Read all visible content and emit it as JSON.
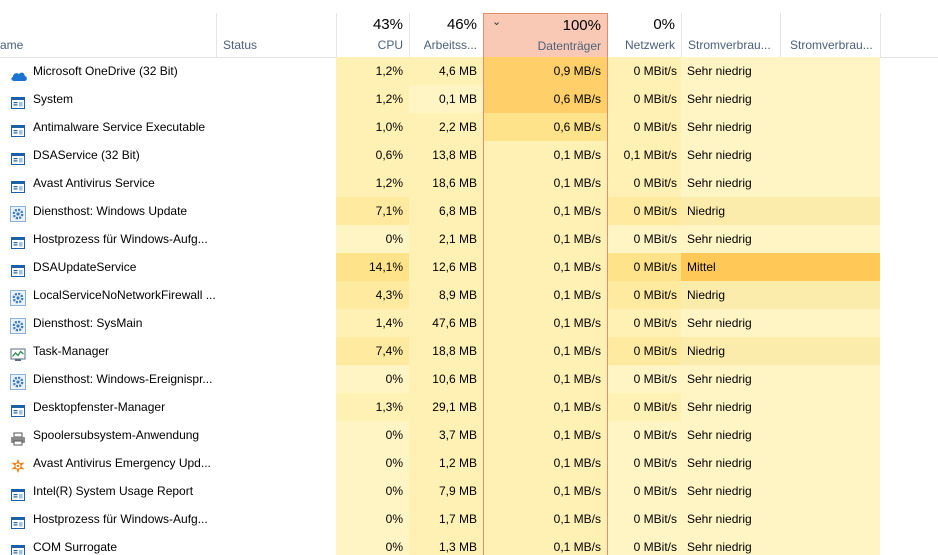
{
  "columns": {
    "name": "ame",
    "status": "Status",
    "cpu": {
      "pct": "43%",
      "label": "CPU"
    },
    "mem": {
      "pct": "46%",
      "label": "Arbeitss..."
    },
    "disk": {
      "pct": "100%",
      "label": "Datenträger"
    },
    "net": {
      "pct": "0%",
      "label": "Netzwerk"
    },
    "power": "Stromverbrau...",
    "power_trend": "Stromverbrau..."
  },
  "colors": {
    "heat_light": "#fff4c4",
    "heat_mid": "#ffe99b",
    "heat_strong": "#ffd273",
    "heat_orange": "#ffc857",
    "sorted_header": "#f9c9b6",
    "sorted_border": "#df8e70"
  },
  "processes": [
    {
      "name": "Microsoft OneDrive (32 Bit)",
      "icon": "onedrive-icon",
      "cpu": "1,2%",
      "mem": "4,6 MB",
      "disk": "0,9 MB/s",
      "net": "0 MBit/s",
      "power": "Sehr niedrig",
      "cpu_bg": "#fff0b4",
      "mem_bg": "#fff0b4",
      "disk_bg": "#ffd06a",
      "pow_bg": "#fff4c4"
    },
    {
      "name": "System",
      "icon": "window-app-icon",
      "cpu": "1,2%",
      "mem": "0,1 MB",
      "disk": "0,6 MB/s",
      "net": "0 MBit/s",
      "power": "Sehr niedrig",
      "cpu_bg": "#fff0b4",
      "mem_bg": "#fff4c4",
      "disk_bg": "#ffd06a",
      "pow_bg": "#fff4c4"
    },
    {
      "name": "Antimalware Service Executable",
      "icon": "window-app-icon",
      "cpu": "1,0%",
      "mem": "2,2 MB",
      "disk": "0,6 MB/s",
      "net": "0 MBit/s",
      "power": "Sehr niedrig",
      "cpu_bg": "#fff0b4",
      "mem_bg": "#fff0b4",
      "disk_bg": "#ffe38a",
      "pow_bg": "#fff4c4"
    },
    {
      "name": "DSAService (32 Bit)",
      "icon": "window-app-icon",
      "cpu": "0,6%",
      "mem": "13,8 MB",
      "disk": "0,1 MB/s",
      "net": "0,1 MBit/s",
      "power": "Sehr niedrig",
      "cpu_bg": "#fff0b4",
      "mem_bg": "#fff0b4",
      "disk_bg": "#fff0b4",
      "pow_bg": "#fff4c4"
    },
    {
      "name": "Avast Antivirus  Service",
      "icon": "window-app-icon",
      "cpu": "1,2%",
      "mem": "18,6 MB",
      "disk": "0,1 MB/s",
      "net": "0 MBit/s",
      "power": "Sehr niedrig",
      "cpu_bg": "#fff0b4",
      "mem_bg": "#fff0b4",
      "disk_bg": "#fff0b4",
      "pow_bg": "#fff4c4"
    },
    {
      "name": "Diensthost: Windows Update",
      "icon": "gear-icon",
      "cpu": "7,1%",
      "mem": "6,8 MB",
      "disk": "0,1 MB/s",
      "net": "0 MBit/s",
      "power": "Niedrig",
      "cpu_bg": "#ffeaa0",
      "mem_bg": "#fff0b4",
      "disk_bg": "#fff0b4",
      "pow_bg": "#fcecac"
    },
    {
      "name": "Hostprozess für Windows-Aufg...",
      "icon": "window-app-icon",
      "cpu": "0%",
      "mem": "2,1 MB",
      "disk": "0,1 MB/s",
      "net": "0 MBit/s",
      "power": "Sehr niedrig",
      "cpu_bg": "#fff4c4",
      "mem_bg": "#fff0b4",
      "disk_bg": "#fff0b4",
      "pow_bg": "#fff4c4"
    },
    {
      "name": "DSAUpdateService",
      "icon": "window-app-icon",
      "cpu": "14,1%",
      "mem": "12,6 MB",
      "disk": "0,1 MB/s",
      "net": "0 MBit/s",
      "power": "Mittel",
      "cpu_bg": "#ffe38a",
      "mem_bg": "#fff0b4",
      "disk_bg": "#fff0b4",
      "pow_bg": "#ffc857"
    },
    {
      "name": "LocalServiceNoNetworkFirewall ...",
      "icon": "gear-icon",
      "cpu": "4,3%",
      "mem": "8,9 MB",
      "disk": "0,1 MB/s",
      "net": "0 MBit/s",
      "power": "Niedrig",
      "cpu_bg": "#ffeaa0",
      "mem_bg": "#fff0b4",
      "disk_bg": "#fff0b4",
      "pow_bg": "#fcecac"
    },
    {
      "name": "Diensthost: SysMain",
      "icon": "gear-icon",
      "cpu": "1,4%",
      "mem": "47,6 MB",
      "disk": "0,1 MB/s",
      "net": "0 MBit/s",
      "power": "Sehr niedrig",
      "cpu_bg": "#fff0b4",
      "mem_bg": "#fff0b4",
      "disk_bg": "#fff0b4",
      "pow_bg": "#fff4c4"
    },
    {
      "name": "Task-Manager",
      "icon": "task-manager-icon",
      "cpu": "7,4%",
      "mem": "18,8 MB",
      "disk": "0,1 MB/s",
      "net": "0 MBit/s",
      "power": "Niedrig",
      "cpu_bg": "#ffeaa0",
      "mem_bg": "#fff0b4",
      "disk_bg": "#fff0b4",
      "pow_bg": "#fcecac"
    },
    {
      "name": "Diensthost: Windows-Ereignispr...",
      "icon": "gear-icon",
      "cpu": "0%",
      "mem": "10,6 MB",
      "disk": "0,1 MB/s",
      "net": "0 MBit/s",
      "power": "Sehr niedrig",
      "cpu_bg": "#fff4c4",
      "mem_bg": "#fff0b4",
      "disk_bg": "#fff0b4",
      "pow_bg": "#fff4c4"
    },
    {
      "name": "Desktopfenster-Manager",
      "icon": "window-app-icon",
      "cpu": "1,3%",
      "mem": "29,1 MB",
      "disk": "0,1 MB/s",
      "net": "0 MBit/s",
      "power": "Sehr niedrig",
      "cpu_bg": "#fff0b4",
      "mem_bg": "#fff0b4",
      "disk_bg": "#fff0b4",
      "pow_bg": "#fff4c4"
    },
    {
      "name": "Spoolersubsystem-Anwendung",
      "icon": "printer-icon",
      "cpu": "0%",
      "mem": "3,7 MB",
      "disk": "0,1 MB/s",
      "net": "0 MBit/s",
      "power": "Sehr niedrig",
      "cpu_bg": "#fff4c4",
      "mem_bg": "#fff0b4",
      "disk_bg": "#fff0b4",
      "pow_bg": "#fff4c4"
    },
    {
      "name": "Avast Antivirus  Emergency Upd...",
      "icon": "avast-icon",
      "cpu": "0%",
      "mem": "1,2 MB",
      "disk": "0,1 MB/s",
      "net": "0 MBit/s",
      "power": "Sehr niedrig",
      "cpu_bg": "#fff4c4",
      "mem_bg": "#fff0b4",
      "disk_bg": "#fff0b4",
      "pow_bg": "#fff4c4"
    },
    {
      "name": "Intel(R) System Usage Report",
      "icon": "window-app-icon",
      "cpu": "0%",
      "mem": "7,9 MB",
      "disk": "0,1 MB/s",
      "net": "0 MBit/s",
      "power": "Sehr niedrig",
      "cpu_bg": "#fff4c4",
      "mem_bg": "#fff0b4",
      "disk_bg": "#fff0b4",
      "pow_bg": "#fff4c4"
    },
    {
      "name": "Hostprozess für Windows-Aufg...",
      "icon": "window-app-icon",
      "cpu": "0%",
      "mem": "1,7 MB",
      "disk": "0,1 MB/s",
      "net": "0 MBit/s",
      "power": "Sehr niedrig",
      "cpu_bg": "#fff4c4",
      "mem_bg": "#fff0b4",
      "disk_bg": "#fff0b4",
      "pow_bg": "#fff4c4"
    },
    {
      "name": "COM Surrogate",
      "icon": "window-app-icon",
      "cpu": "0%",
      "mem": "1,3 MB",
      "disk": "0,1 MB/s",
      "net": "0 MBit/s",
      "power": "Sehr niedrig",
      "cpu_bg": "#fff4c4",
      "mem_bg": "#fff0b4",
      "disk_bg": "#fff0b4",
      "pow_bg": "#fff4c4"
    }
  ]
}
